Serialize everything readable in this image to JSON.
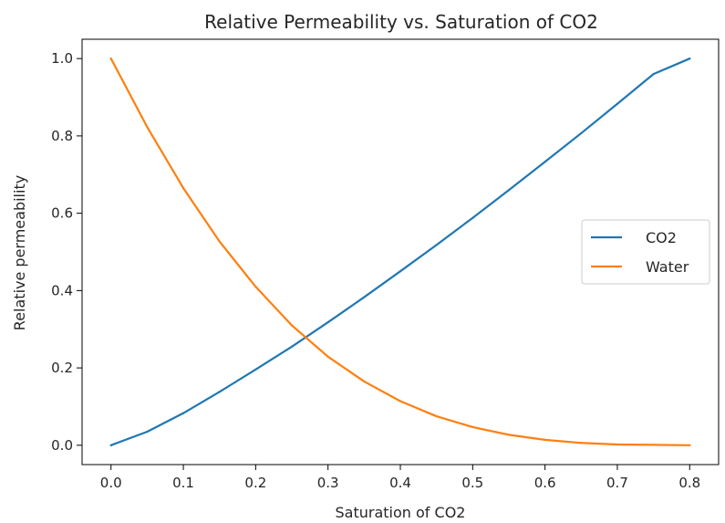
{
  "chart_data": {
    "type": "line",
    "title": "Relative Permeability vs. Saturation of CO2",
    "xlabel": "Saturation of CO2",
    "ylabel": "Relative permeability",
    "xlim": [
      -0.04,
      0.84
    ],
    "ylim": [
      -0.05,
      1.05
    ],
    "xticks": [
      0.0,
      0.1,
      0.2,
      0.3,
      0.4,
      0.5,
      0.6,
      0.7,
      0.8
    ],
    "xtick_labels": [
      "0.0",
      "0.1",
      "0.2",
      "0.3",
      "0.4",
      "0.5",
      "0.6",
      "0.7",
      "0.8"
    ],
    "yticks": [
      0.0,
      0.2,
      0.4,
      0.6,
      0.8,
      1.0
    ],
    "ytick_labels": [
      "0.0",
      "0.2",
      "0.4",
      "0.6",
      "0.8",
      "1.0"
    ],
    "grid": false,
    "legend_position": "center-right",
    "x": [
      0.0,
      0.05,
      0.1,
      0.15,
      0.2,
      0.25,
      0.3,
      0.35,
      0.4,
      0.45,
      0.5,
      0.55,
      0.6,
      0.65,
      0.7,
      0.75,
      0.8
    ],
    "series": [
      {
        "name": "CO2",
        "color": "#1f77b4",
        "values": [
          0.0,
          0.035,
          0.083,
          0.138,
          0.196,
          0.255,
          0.318,
          0.383,
          0.45,
          0.518,
          0.588,
          0.66,
          0.733,
          0.807,
          0.883,
          0.96,
          1.0
        ]
      },
      {
        "name": "Water",
        "color": "#ff7f0e",
        "values": [
          1.0,
          0.823,
          0.665,
          0.527,
          0.41,
          0.31,
          0.229,
          0.165,
          0.114,
          0.075,
          0.047,
          0.027,
          0.014,
          0.006,
          0.002,
          0.001,
          0.0
        ]
      }
    ]
  }
}
